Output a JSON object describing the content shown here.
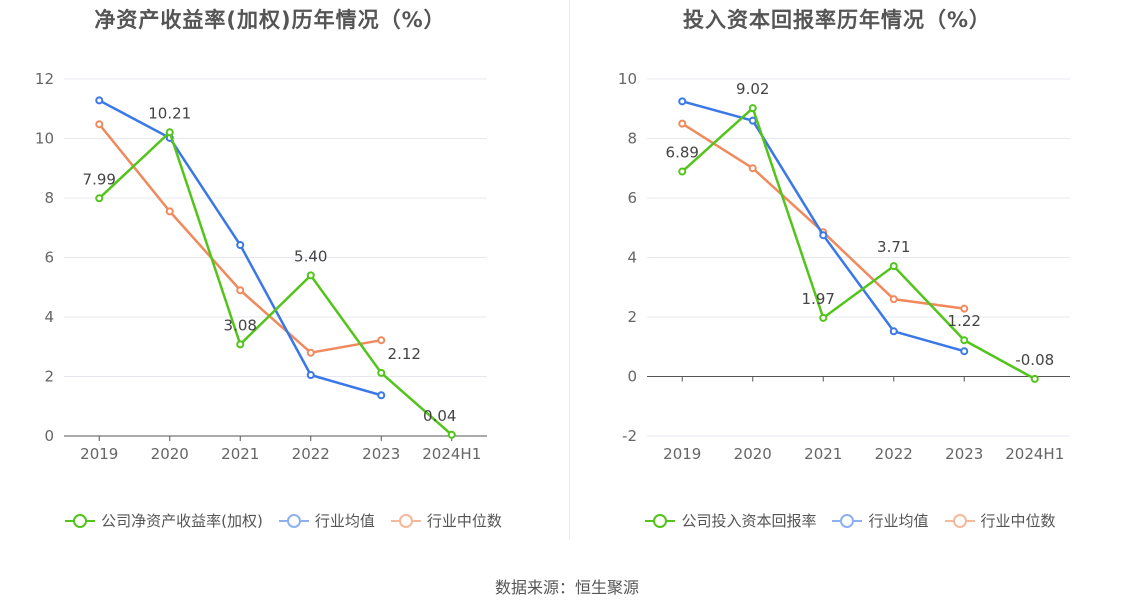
{
  "charts": [
    {
      "title": "净资产收益率(加权)历年情况（%）",
      "legend": [
        "公司净资产收益率(加权)",
        "行业均值",
        "行业中位数"
      ]
    },
    {
      "title": "投入资本回报率历年情况（%）",
      "legend": [
        "公司投入资本回报率",
        "行业均值",
        "行业中位数"
      ]
    }
  ],
  "source": "数据来源：恒生聚源",
  "chart_data": [
    {
      "type": "line",
      "title": "净资产收益率(加权)历年情况（%）",
      "categories": [
        "2019",
        "2020",
        "2021",
        "2022",
        "2023",
        "2024H1"
      ],
      "ylim": [
        0,
        12
      ],
      "yticks": [
        0,
        2,
        4,
        6,
        8,
        10,
        12
      ],
      "grid": true,
      "legend_position": "bottom",
      "series": [
        {
          "name": "公司净资产收益率(加权)",
          "color": "#52c41a",
          "values": [
            7.99,
            10.21,
            3.08,
            5.4,
            2.12,
            0.04
          ],
          "labels": [
            "7.99",
            "10.21",
            "3.08",
            "5.40",
            "2.12",
            "0.04"
          ]
        },
        {
          "name": "行业均值",
          "color": "#3b78e7",
          "values": [
            11.28,
            10.02,
            6.42,
            2.05,
            1.37,
            null
          ]
        },
        {
          "name": "行业中位数",
          "color": "#f08a5d",
          "values": [
            10.48,
            7.55,
            4.9,
            2.8,
            3.22,
            null
          ]
        }
      ]
    },
    {
      "type": "line",
      "title": "投入资本回报率历年情况（%）",
      "categories": [
        "2019",
        "2020",
        "2021",
        "2022",
        "2023",
        "2024H1"
      ],
      "ylim": [
        -2,
        10
      ],
      "yticks": [
        -2,
        0,
        2,
        4,
        6,
        8,
        10
      ],
      "grid": true,
      "legend_position": "bottom",
      "series": [
        {
          "name": "公司投入资本回报率",
          "color": "#52c41a",
          "values": [
            6.89,
            9.02,
            1.97,
            3.71,
            1.22,
            -0.08
          ],
          "labels": [
            "6.89",
            "9.02",
            "1.97",
            "3.71",
            "1.22",
            "-0.08"
          ]
        },
        {
          "name": "行业均值",
          "color": "#3b78e7",
          "values": [
            9.25,
            8.6,
            4.75,
            1.52,
            0.85,
            null
          ]
        },
        {
          "name": "行业中位数",
          "color": "#f08a5d",
          "values": [
            8.5,
            7.0,
            4.85,
            2.6,
            2.28,
            null
          ]
        }
      ]
    }
  ]
}
